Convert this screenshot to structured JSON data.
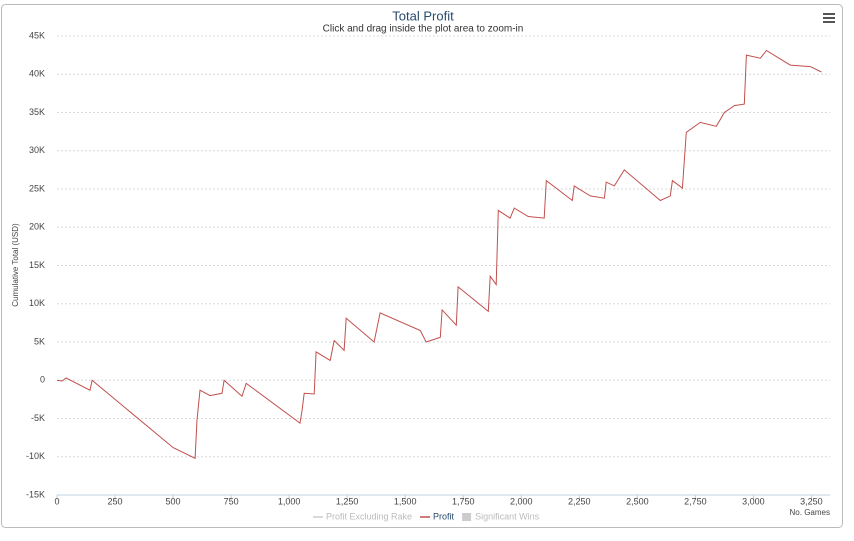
{
  "chart_data": {
    "type": "line",
    "title": "Total Profit",
    "subtitle": "Click and drag inside the plot area to zoom-in",
    "ylabel": "Cumulative Total (USD)",
    "xlabel": "No. Games",
    "xlim": [
      0,
      3330
    ],
    "ylim": [
      -15000,
      45000
    ],
    "xticks": [
      0,
      250,
      500,
      750,
      {
        "value": 1000,
        "label": "1,000"
      },
      {
        "value": 1250,
        "label": "1,250"
      },
      {
        "value": 1500,
        "label": "1,500"
      },
      {
        "value": 1750,
        "label": "1,750"
      },
      {
        "value": 2000,
        "label": "2,000"
      },
      {
        "value": 2250,
        "label": "2,250"
      },
      {
        "value": 2500,
        "label": "2,500"
      },
      {
        "value": 2750,
        "label": "2,750"
      },
      {
        "value": 3000,
        "label": "3,000"
      },
      {
        "value": 3250,
        "label": "3,250"
      }
    ],
    "yticks": [
      {
        "value": -15000,
        "label": "-15K"
      },
      {
        "value": -10000,
        "label": "-10K"
      },
      {
        "value": -5000,
        "label": "-5K"
      },
      0,
      {
        "value": 5000,
        "label": "5K"
      },
      {
        "value": 10000,
        "label": "10K"
      },
      {
        "value": 15000,
        "label": "15K"
      },
      {
        "value": 20000,
        "label": "20K"
      },
      {
        "value": 25000,
        "label": "25K"
      },
      {
        "value": 30000,
        "label": "30K"
      },
      {
        "value": 35000,
        "label": "35K"
      },
      {
        "value": 40000,
        "label": "40K"
      },
      {
        "value": {
          "value": 45000,
          "label": "45K"
        }
      }
    ],
    "grid": true,
    "legend_items": [
      {
        "name": "Profit Excluding Rake",
        "color": "#cccccc",
        "symbol": "line"
      },
      {
        "name": "Profit",
        "color": "#c0504d",
        "symbol": "line"
      },
      {
        "name": "Significant Wins",
        "color": "#cccccc",
        "symbol": "box"
      }
    ],
    "series": [
      {
        "name": "Profit",
        "color": "#c0504d",
        "x": [
          0,
          22,
          39,
          142,
          151,
          500,
          595,
          603,
          616,
          659,
          711,
          720,
          797,
          815,
          1047,
          1056,
          1065,
          1108,
          1116,
          1177,
          1194,
          1237,
          1246,
          1366,
          1392,
          1565,
          1590,
          1651,
          1659,
          1720,
          1728,
          1858,
          1866,
          1892,
          1901,
          1952,
          1970,
          2030,
          2099,
          2108,
          2220,
          2228,
          2297,
          2358,
          2366,
          2401,
          2444,
          2599,
          2642,
          2651,
          2694,
          2711,
          2771,
          2840,
          2875,
          2918,
          2961,
          2970,
          3030,
          3056,
          3159,
          3245,
          3293
        ],
        "values": [
          0,
          -100,
          300,
          -1300,
          0,
          -8800,
          -10200,
          -5200,
          -1300,
          -2000,
          -1700,
          0,
          -2100,
          -400,
          -5600,
          -3900,
          -1700,
          -1800,
          3700,
          2600,
          5200,
          3900,
          8100,
          5000,
          8800,
          6500,
          5000,
          5600,
          9200,
          7200,
          12200,
          9000,
          13600,
          12500,
          22200,
          21200,
          22500,
          21400,
          21200,
          26100,
          23500,
          25400,
          24100,
          23800,
          25900,
          25400,
          27500,
          23500,
          24100,
          26100,
          25100,
          32400,
          33700,
          33200,
          35000,
          35900,
          36100,
          42500,
          42100,
          43100,
          41200,
          41000,
          40300
        ]
      }
    ]
  }
}
